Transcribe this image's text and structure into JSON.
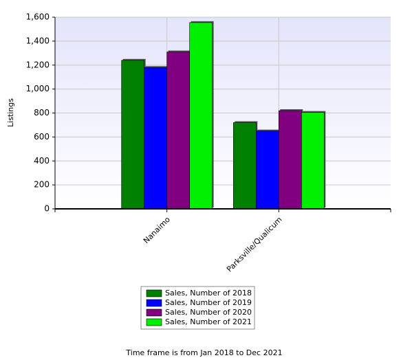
{
  "chart_data": {
    "type": "bar",
    "y_label": "Listings",
    "categories": [
      "Nanaimo",
      "Parksville/Qualicum"
    ],
    "series": [
      {
        "name": "Sales, Number of 2018",
        "color": "#008000",
        "values": [
          1240,
          720
        ]
      },
      {
        "name": "Sales, Number of 2019",
        "color": "#0000ff",
        "values": [
          1180,
          650
        ]
      },
      {
        "name": "Sales, Number of 2020",
        "color": "#800080",
        "values": [
          1310,
          820
        ]
      },
      {
        "name": "Sales, Number of 2021",
        "color": "#00ee00",
        "values": [
          1555,
          805
        ]
      }
    ],
    "ylim": [
      0,
      1600
    ],
    "yticks": [
      0,
      200,
      400,
      600,
      800,
      {
        "value": 1000,
        "label": "1,000"
      },
      {
        "value": 1200,
        "label": "1,200"
      },
      {
        "value": 1400,
        "label": "1,400"
      },
      {
        "value": 1600,
        "label": "1,600"
      }
    ],
    "grid": true,
    "legend": "bottom",
    "footnote": "Time frame is from Jan 2018 to Dec 2021"
  }
}
